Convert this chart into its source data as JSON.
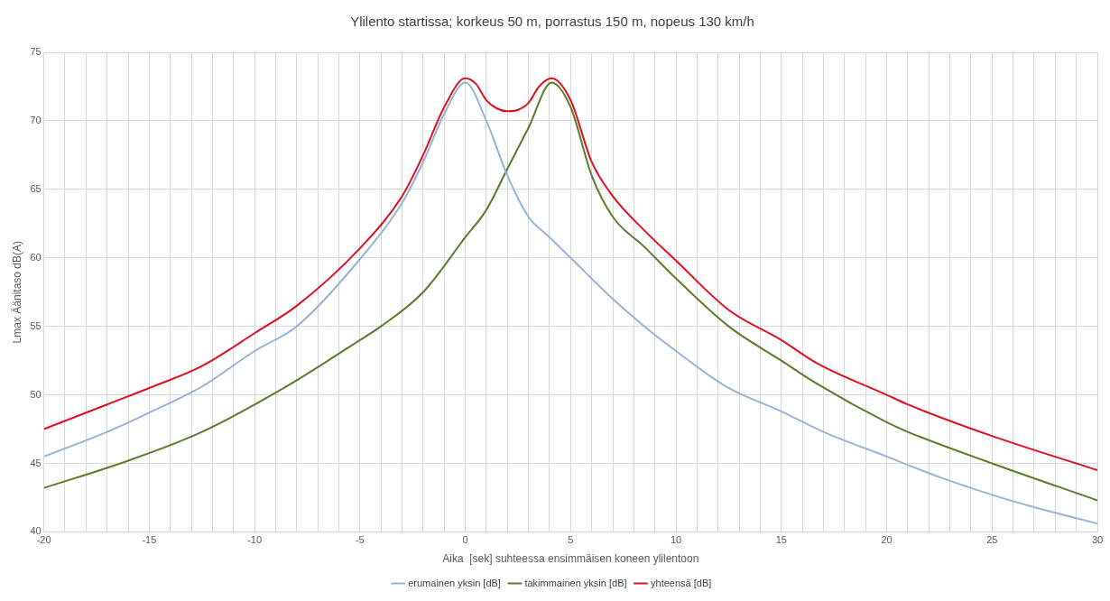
{
  "chart_data": {
    "type": "line",
    "title": "Ylilento startissa; korkeus 50 m, porrastus 150 m, nopeus 130 km/h",
    "xlabel": "Aika  [sek] suhteessa ensimmäisen koneen ylilentoon",
    "ylabel": "Lmax Äänitaso dB(A)",
    "series": [
      {
        "name": "erumainen yksin [dB]",
        "color": "#95b3d7",
        "x": [
          -20,
          -17,
          -15,
          -12.5,
          -10,
          -8,
          -5,
          -3,
          -2,
          -1,
          0,
          1,
          2,
          3,
          4,
          5,
          7,
          8.5,
          10,
          12.5,
          15,
          17,
          20,
          22.5,
          25,
          27,
          30
        ],
        "values": [
          45.5,
          47.3,
          48.7,
          50.6,
          53.2,
          55,
          59.9,
          64,
          67,
          70.5,
          72.8,
          70,
          66,
          63,
          61.5,
          60,
          57,
          55,
          53.2,
          50.5,
          48.8,
          47.3,
          45.5,
          44,
          42.7,
          41.8,
          40.6
        ]
      },
      {
        "name": "takimmainen yksin [dB]",
        "color": "#5a7a2e",
        "x": [
          -20,
          -16,
          -12.5,
          -8.5,
          -5,
          -4,
          -2,
          0,
          1,
          2,
          3,
          4.1,
          5,
          6,
          7,
          8.5,
          10,
          12.5,
          15,
          16.7,
          20,
          21,
          25,
          30
        ],
        "values": [
          43.2,
          45.2,
          47.3,
          50.6,
          54,
          55,
          57.5,
          61.5,
          63.5,
          66.5,
          69.5,
          72.8,
          71,
          66,
          63,
          60.8,
          58.5,
          55,
          52.5,
          50.8,
          48,
          47.3,
          45,
          42.3
        ]
      },
      {
        "name": "yhteensä [dB]",
        "color": "#e0101e",
        "x": [
          -20,
          -17,
          -15,
          -12.5,
          -10,
          -8,
          -5,
          -3,
          -2,
          -1,
          0,
          0.5,
          1,
          1.5,
          2,
          2.5,
          3,
          3.5,
          4.1,
          5,
          6,
          7,
          8.5,
          10,
          12.5,
          15,
          16.7,
          20,
          21,
          25,
          30
        ],
        "values": [
          47.5,
          49.3,
          50.5,
          52.1,
          54.5,
          56.5,
          60.7,
          64.5,
          67.5,
          71,
          73.1,
          72.7,
          71.5,
          70.9,
          70.7,
          70.8,
          71.3,
          72.5,
          73.1,
          71.5,
          67,
          64.5,
          62,
          59.8,
          56.2,
          54,
          52.3,
          50,
          49.3,
          47,
          44.5
        ]
      }
    ],
    "xlim": [
      -20,
      30
    ],
    "xticks": [
      -20,
      {
        "value": -19,
        "label": null
      },
      {
        "value": -18,
        "label": null
      },
      {
        "value": -17,
        "label": null
      },
      {
        "value": -16,
        "label": null
      },
      -15,
      {
        "value": -14,
        "label": null
      },
      {
        "value": -13,
        "label": null
      },
      {
        "value": -12,
        "label": null
      },
      {
        "value": -11,
        "label": null
      },
      -10,
      {
        "value": -9,
        "label": null
      },
      {
        "value": -8,
        "label": null
      },
      {
        "value": -7,
        "label": null
      },
      {
        "value": -6,
        "label": null
      },
      -5,
      {
        "value": -4,
        "label": null
      },
      {
        "value": -3,
        "label": null
      },
      {
        "value": -2,
        "label": null
      },
      {
        "value": -1,
        "label": null
      },
      0,
      {
        "value": 1,
        "label": null
      },
      {
        "value": 2,
        "label": null
      },
      {
        "value": 3,
        "label": null
      },
      {
        "value": 4,
        "label": null
      },
      5,
      {
        "value": 6,
        "label": null
      },
      {
        "value": 7,
        "label": null
      },
      {
        "value": 8,
        "label": null
      },
      {
        "value": 9,
        "label": null
      },
      10,
      {
        "value": 11,
        "label": null
      },
      {
        "value": 12,
        "label": null
      },
      {
        "value": 13,
        "label": null
      },
      {
        "value": 14,
        "label": null
      },
      15,
      {
        "value": 16,
        "label": null
      },
      {
        "value": 17,
        "label": null
      },
      {
        "value": 18,
        "label": null
      },
      {
        "value": 19,
        "label": null
      },
      20,
      {
        "value": 21,
        "label": null
      },
      {
        "value": 22,
        "label": null
      },
      {
        "value": 23,
        "label": null
      },
      {
        "value": 24,
        "label": null
      },
      25,
      {
        "value": 26,
        "label": null
      },
      {
        "value": 27,
        "label": null
      },
      {
        "value": 28,
        "label": null
      },
      {
        "value": 29,
        "label": null
      },
      30
    ],
    "ylim": [
      40,
      75
    ],
    "yticks": [
      40,
      45,
      50,
      55,
      60,
      65,
      70,
      75
    ],
    "grid": true,
    "legend": "bottom",
    "marker": "none",
    "line_style": "solid"
  }
}
